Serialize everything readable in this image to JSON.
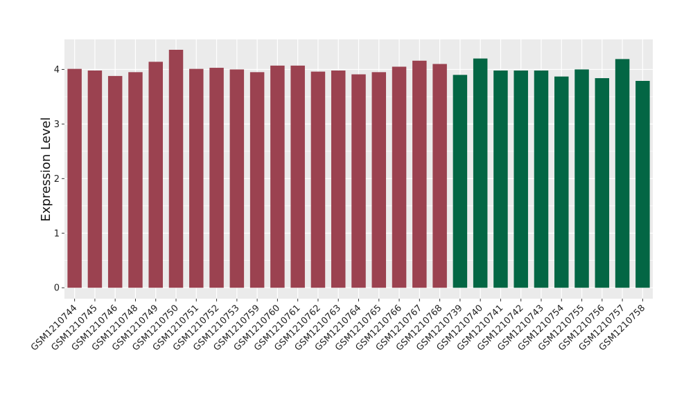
{
  "chart_data": {
    "type": "bar",
    "title": "",
    "xlabel": "",
    "ylabel": "Expression Level",
    "ylim": [
      -0.2,
      4.55
    ],
    "yticks": [
      0,
      1,
      2,
      3,
      4
    ],
    "grid": true,
    "legend": "none",
    "colors": {
      "panel_bg": "#ebebeb",
      "grid": "#ffffff",
      "group_a": "#9b4250",
      "group_b": "#036644"
    },
    "categories": [
      "GSM1210744",
      "GSM1210745",
      "GSM1210746",
      "GSM1210748",
      "GSM1210749",
      "GSM1210750",
      "GSM1210751",
      "GSM1210752",
      "GSM1210753",
      "GSM1210759",
      "GSM1210760",
      "GSM1210761",
      "GSM1210762",
      "GSM1210763",
      "GSM1210764",
      "GSM1210765",
      "GSM1210766",
      "GSM1210767",
      "GSM1210768",
      "GSM1210739",
      "GSM1210740",
      "GSM1210741",
      "GSM1210742",
      "GSM1210743",
      "GSM1210754",
      "GSM1210755",
      "GSM1210756",
      "GSM1210757",
      "GSM1210758"
    ],
    "values": [
      4.01,
      3.98,
      3.88,
      3.95,
      4.14,
      4.36,
      4.01,
      4.03,
      4.0,
      3.95,
      4.07,
      4.07,
      3.96,
      3.98,
      3.91,
      3.95,
      4.05,
      4.16,
      4.1,
      3.9,
      4.2,
      3.98,
      3.98,
      3.98,
      3.87,
      4.0,
      3.84,
      4.19,
      3.79
    ],
    "group": [
      "a",
      "a",
      "a",
      "a",
      "a",
      "a",
      "a",
      "a",
      "a",
      "a",
      "a",
      "a",
      "a",
      "a",
      "a",
      "a",
      "a",
      "a",
      "a",
      "b",
      "b",
      "b",
      "b",
      "b",
      "b",
      "b",
      "b",
      "b",
      "b"
    ]
  }
}
